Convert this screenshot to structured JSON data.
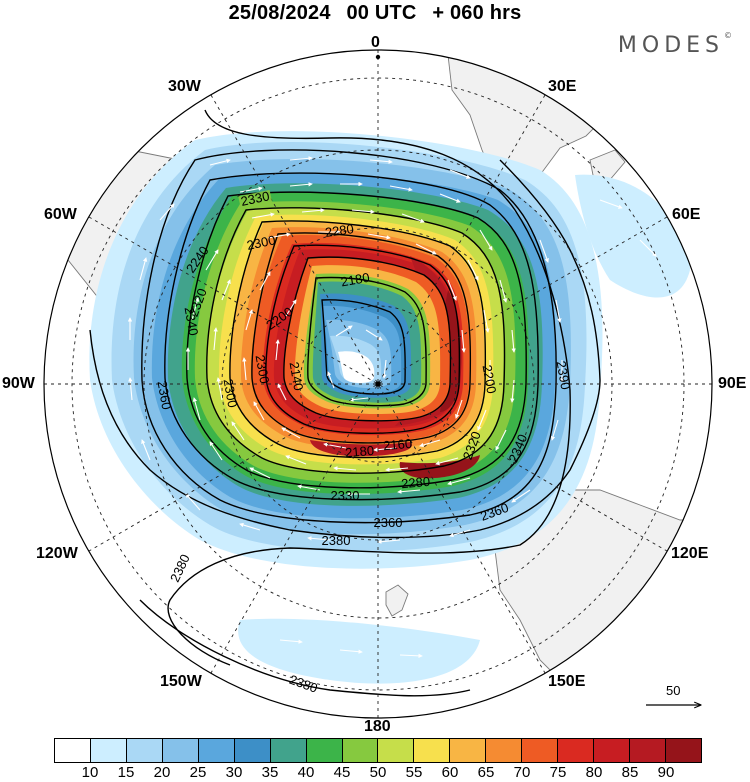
{
  "header": {
    "date": "25/08/2024",
    "time": "00 UTC",
    "lead": "+ 060 hrs",
    "brand": "MODES",
    "brand_mark": "©"
  },
  "map": {
    "projection": "south-polar-stereographic",
    "longitude_labels": {
      "top": "0",
      "top_right": "30E",
      "upper_right": "60E",
      "right": "90E",
      "lower_right": "120E",
      "bottom_right": "150E",
      "bottom": "180",
      "bottom_left": "150W",
      "lower_left": "120W",
      "left": "90W",
      "upper_left": "60W",
      "top_left": "30W"
    },
    "contour_labels": [
      "2330",
      "2300",
      "2280",
      "2240",
      "2180",
      "2200",
      "2340",
      "2320",
      "2300",
      "2360",
      "2300",
      "2140",
      "2390",
      "2340",
      "2200",
      "2160",
      "2180",
      "2320",
      "2280",
      "2330",
      "2360",
      "2360",
      "2380",
      "2380",
      "2380"
    ],
    "wind_reference": {
      "label": "50"
    },
    "colors": {
      "land": "#f2f2f2",
      "coastline": "#777777",
      "grid": "#222222",
      "contour": "#000000",
      "wind_arrow": "#ffffff"
    }
  },
  "colorbar": {
    "labels": [
      "10",
      "15",
      "20",
      "25",
      "30",
      "35",
      "40",
      "45",
      "50",
      "55",
      "60",
      "65",
      "70",
      "75",
      "80",
      "85",
      "90"
    ],
    "colors": [
      "#ffffff",
      "#cdeeff",
      "#aad8f5",
      "#85c1ea",
      "#5aa7dd",
      "#3d8fc7",
      "#41a38c",
      "#3cb449",
      "#86c93f",
      "#c6de4a",
      "#f7e04d",
      "#f8b544",
      "#f58b32",
      "#ee5b24",
      "#da2a21",
      "#c71d22",
      "#b51a22",
      "#95141a"
    ]
  }
}
